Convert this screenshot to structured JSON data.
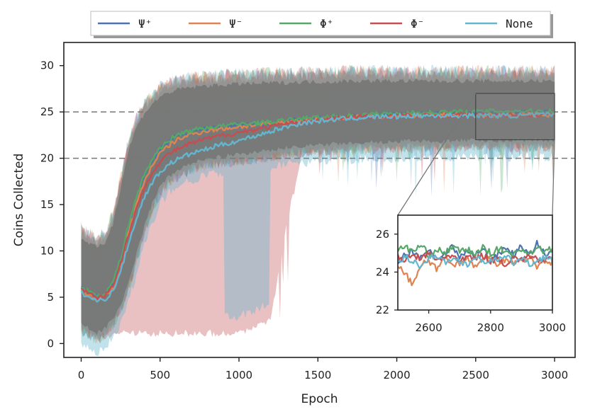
{
  "chart_data": {
    "type": "line",
    "xlabel": "Epoch",
    "ylabel": "Coins Collected",
    "xlim": [
      -110,
      3130
    ],
    "ylim": [
      -1.5,
      32.5
    ],
    "xticks": [
      0,
      500,
      1000,
      1500,
      2000,
      2500,
      3000
    ],
    "yticks": [
      0,
      5,
      10,
      15,
      20,
      25,
      30
    ],
    "reference_lines": [
      25,
      20
    ],
    "legend_position": "top-center",
    "grid": false,
    "x": [
      0,
      50,
      100,
      150,
      200,
      250,
      300,
      350,
      400,
      450,
      500,
      550,
      600,
      650,
      700,
      750,
      800,
      850,
      900,
      950,
      1000,
      1100,
      1200,
      1300,
      1400,
      1500,
      1600,
      1700,
      1800,
      1900,
      2000,
      2100,
      2200,
      2300,
      2400,
      2500,
      2600,
      2700,
      2800,
      2900,
      3000
    ],
    "series": [
      {
        "name": "Ψ⁺",
        "color": "#4c72b0",
        "values": [
          6.0,
          5.5,
          5.0,
          5.3,
          6.5,
          9.0,
          12.5,
          15.5,
          18.0,
          19.8,
          21.0,
          21.8,
          22.3,
          22.7,
          22.9,
          23.1,
          23.2,
          23.3,
          23.4,
          23.5,
          23.6,
          23.7,
          23.8,
          24.0,
          24.2,
          24.3,
          24.4,
          24.5,
          24.6,
          24.6,
          24.7,
          24.7,
          24.8,
          24.8,
          24.8,
          24.9,
          24.9,
          24.9,
          24.9,
          24.95,
          25.0
        ]
      },
      {
        "name": "Ψ⁻",
        "color": "#dd8452",
        "values": [
          5.8,
          5.2,
          4.8,
          5.0,
          6.0,
          8.5,
          12.0,
          15.0,
          17.5,
          19.3,
          20.5,
          21.3,
          21.9,
          22.3,
          22.6,
          22.8,
          23.0,
          23.1,
          23.2,
          23.3,
          23.4,
          23.6,
          23.7,
          23.9,
          24.1,
          24.2,
          24.3,
          24.4,
          24.5,
          24.5,
          24.6,
          24.6,
          24.7,
          24.7,
          24.7,
          24.7,
          24.6,
          24.7,
          24.7,
          24.7,
          24.7
        ]
      },
      {
        "name": "Φ⁺",
        "color": "#55a868",
        "values": [
          6.1,
          5.6,
          5.2,
          5.4,
          6.6,
          9.2,
          12.8,
          15.8,
          18.2,
          19.9,
          21.1,
          21.9,
          22.4,
          22.8,
          23.0,
          23.2,
          23.3,
          23.4,
          23.5,
          23.6,
          23.7,
          23.8,
          23.9,
          24.1,
          24.3,
          24.4,
          24.5,
          24.6,
          24.7,
          24.8,
          24.8,
          24.9,
          24.9,
          25.0,
          25.0,
          25.0,
          25.1,
          25.1,
          25.1,
          25.1,
          25.1
        ]
      },
      {
        "name": "Φ⁻",
        "color": "#c44e52",
        "values": [
          5.9,
          5.4,
          5.0,
          5.2,
          6.2,
          8.6,
          11.8,
          14.5,
          16.8,
          18.5,
          19.6,
          20.4,
          20.9,
          21.3,
          21.6,
          21.9,
          22.1,
          22.3,
          22.5,
          22.6,
          22.8,
          23.1,
          23.4,
          23.7,
          23.9,
          24.1,
          24.3,
          24.4,
          24.5,
          24.5,
          24.6,
          24.6,
          24.6,
          24.6,
          24.7,
          24.7,
          24.6,
          24.7,
          24.7,
          24.7,
          24.7
        ]
      },
      {
        "name": "None",
        "color": "#64b5cd",
        "values": [
          5.5,
          5.0,
          4.6,
          4.8,
          5.6,
          7.8,
          10.8,
          13.5,
          15.8,
          17.4,
          18.5,
          19.3,
          19.8,
          20.2,
          20.5,
          20.8,
          21.0,
          21.3,
          21.5,
          21.7,
          21.9,
          22.4,
          22.9,
          23.4,
          23.8,
          24.0,
          24.2,
          24.3,
          24.4,
          24.5,
          24.5,
          24.6,
          24.6,
          24.6,
          24.6,
          24.6,
          24.6,
          24.6,
          24.6,
          24.7,
          24.7
        ]
      }
    ],
    "band_upper": [
      11.5,
      11.0,
      10.5,
      11.0,
      13.0,
      17.0,
      21.0,
      23.5,
      25.0,
      26.0,
      26.8,
      27.2,
      27.5,
      27.7,
      27.8,
      27.9,
      28.0,
      28.0,
      28.1,
      28.1,
      28.2,
      28.2,
      28.3,
      28.3,
      28.4,
      28.4,
      28.4,
      28.5,
      28.5,
      28.5,
      28.5,
      28.5,
      28.5,
      28.5,
      28.5,
      28.5,
      28.5,
      28.5,
      28.5,
      28.5,
      28.5
    ],
    "band_lower": [
      2.0,
      1.5,
      1.0,
      1.5,
      2.5,
      4.0,
      6.5,
      9.5,
      12.5,
      15.0,
      16.8,
      17.8,
      18.5,
      19.0,
      19.3,
      19.6,
      19.8,
      20.0,
      20.1,
      20.2,
      20.3,
      20.5,
      20.7,
      21.0,
      21.2,
      21.3,
      21.4,
      21.5,
      21.6,
      21.6,
      21.7,
      21.7,
      21.7,
      21.7,
      21.8,
      21.8,
      21.8,
      21.8,
      21.8,
      21.8,
      21.8
    ],
    "red_band_lower": [
      2.0,
      1.5,
      1.0,
      1.2,
      1.5,
      1.5,
      1.5,
      1.5,
      1.5,
      1.5,
      1.5,
      1.5,
      1.5,
      1.5,
      1.5,
      1.5,
      1.5,
      1.5,
      1.5,
      1.5,
      1.5,
      2.0,
      3.0,
      13.0,
      21.2,
      21.3,
      21.4,
      21.5,
      21.6,
      21.6,
      21.7,
      21.7,
      21.7,
      21.7,
      21.8,
      21.8,
      21.8,
      21.8,
      21.8,
      21.8,
      21.8
    ],
    "inset": {
      "xlim": [
        2500,
        3000
      ],
      "ylim": [
        22,
        27
      ],
      "xticks": [
        2600,
        2800,
        3000
      ],
      "yticks": [
        22,
        24,
        26
      ],
      "x": [
        2500,
        2525,
        2550,
        2575,
        2600,
        2625,
        2650,
        2675,
        2700,
        2725,
        2750,
        2775,
        2800,
        2825,
        2850,
        2875,
        2900,
        2925,
        2950,
        2975,
        3000
      ],
      "series": [
        {
          "name": "Ψ⁺",
          "values": [
            24.6,
            24.9,
            25.1,
            24.8,
            25.2,
            24.7,
            25.0,
            25.3,
            24.8,
            25.1,
            24.9,
            25.2,
            24.7,
            25.0,
            25.3,
            24.9,
            25.4,
            24.8,
            25.6,
            24.9,
            25.0
          ]
        },
        {
          "name": "Ψ⁻",
          "values": [
            24.3,
            23.9,
            23.3,
            24.4,
            24.6,
            24.2,
            24.8,
            24.4,
            24.5,
            24.7,
            24.3,
            24.6,
            24.8,
            24.4,
            24.7,
            24.5,
            24.6,
            24.8,
            24.3,
            24.6,
            24.5
          ]
        },
        {
          "name": "Φ⁺",
          "values": [
            25.2,
            25.3,
            25.1,
            25.4,
            24.9,
            25.2,
            25.0,
            25.3,
            25.1,
            25.2,
            24.9,
            25.3,
            25.0,
            25.2,
            25.1,
            24.9,
            25.2,
            25.0,
            25.3,
            25.1,
            25.2
          ]
        },
        {
          "name": "Φ⁻",
          "values": [
            24.8,
            24.6,
            24.9,
            24.7,
            25.0,
            24.6,
            24.8,
            24.9,
            24.5,
            24.8,
            24.7,
            24.9,
            24.6,
            24.7,
            24.4,
            24.8,
            24.6,
            24.9,
            24.7,
            24.5,
            24.8
          ]
        },
        {
          "name": "None",
          "values": [
            24.5,
            24.8,
            24.6,
            24.3,
            24.7,
            24.9,
            24.5,
            24.7,
            24.6,
            24.4,
            24.8,
            24.5,
            24.7,
            24.6,
            24.8,
            24.5,
            24.7,
            24.4,
            24.6,
            24.8,
            24.6
          ]
        }
      ]
    }
  }
}
